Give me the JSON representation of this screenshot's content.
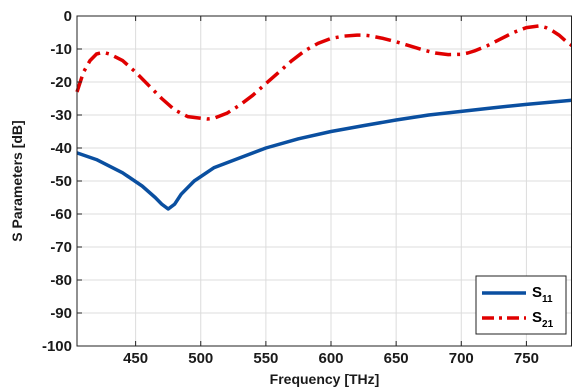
{
  "chart_data": {
    "type": "line",
    "xlabel": "Frequency [THz]",
    "ylabel": "S Parameters [dB]",
    "xlim": [
      405,
      785
    ],
    "ylim": [
      -100,
      0
    ],
    "xticks": [
      450,
      500,
      550,
      600,
      650,
      700,
      750
    ],
    "yticks": [
      0,
      -10,
      -20,
      -30,
      -40,
      -50,
      -60,
      -70,
      -80,
      -90,
      -100
    ],
    "grid": true,
    "legend_position": "bottom-right",
    "series": [
      {
        "name": "S11",
        "label_main": "S",
        "label_sub": "11",
        "color": "#0a4fa0",
        "style": "solid",
        "x": [
          405,
          420,
          440,
          455,
          465,
          470,
          475,
          480,
          485,
          495,
          510,
          530,
          550,
          575,
          600,
          625,
          650,
          675,
          700,
          725,
          750,
          785
        ],
        "y": [
          -41.5,
          -43.5,
          -47.5,
          -51.5,
          -55.0,
          -57.0,
          -58.5,
          -57.0,
          -54.0,
          -50.0,
          -46.0,
          -43.0,
          -40.0,
          -37.2,
          -35.0,
          -33.2,
          -31.5,
          -30.0,
          -28.9,
          -27.8,
          -26.8,
          -25.5
        ]
      },
      {
        "name": "S21",
        "label_main": "S",
        "label_sub": "21",
        "color": "#e00000",
        "style": "dashdot",
        "x": [
          405,
          410,
          415,
          420,
          425,
          430,
          440,
          450,
          460,
          470,
          480,
          490,
          500,
          505,
          510,
          520,
          530,
          540,
          550,
          560,
          570,
          580,
          590,
          600,
          610,
          620,
          625,
          630,
          640,
          650,
          660,
          670,
          680,
          690,
          700,
          705,
          710,
          720,
          730,
          740,
          750,
          760,
          765,
          770,
          775,
          780,
          785
        ],
        "y": [
          -23.0,
          -17.0,
          -13.5,
          -11.5,
          -11.0,
          -11.5,
          -13.5,
          -17.0,
          -21.0,
          -25.0,
          -28.5,
          -30.5,
          -31.0,
          -31.2,
          -31.0,
          -29.5,
          -27.0,
          -24.0,
          -20.5,
          -17.0,
          -13.5,
          -10.5,
          -8.3,
          -6.8,
          -6.1,
          -5.8,
          -5.8,
          -6.0,
          -6.8,
          -7.8,
          -9.0,
          -10.2,
          -11.2,
          -11.7,
          -11.6,
          -11.2,
          -10.6,
          -9.0,
          -7.0,
          -5.0,
          -3.5,
          -3.0,
          -3.5,
          -4.5,
          -5.8,
          -7.5,
          -9.0
        ]
      }
    ]
  }
}
